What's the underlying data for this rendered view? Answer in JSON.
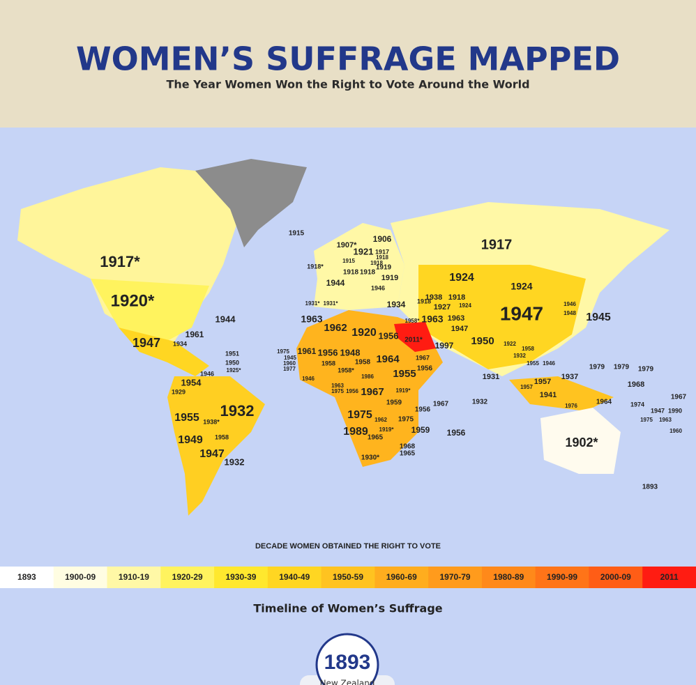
{
  "header": {
    "title": "WOMEN’S SUFFRAGE MAPPED",
    "subtitle": "The Year Women Won the Right to Vote Around the World"
  },
  "map": {
    "labels": [
      "1915",
      "1907*",
      "1906",
      "1921",
      "1917",
      "1917",
      "1917*",
      "1918",
      "1915",
      "1918",
      "1918*",
      "1918",
      "1918",
      "1919",
      "1919",
      "1944",
      "1946",
      "1924",
      "1924",
      "1920*",
      "1931*",
      "1931*",
      "1934",
      "1918",
      "1938",
      "1918",
      "1927",
      "1924",
      "1946",
      "1948",
      "1947",
      "1945",
      "1944",
      "1963",
      "1962",
      "1920",
      "1956",
      "2011*",
      "1958*",
      "1963",
      "1963",
      "1947",
      "1950",
      "1922",
      "1997",
      "1961",
      "1947",
      "1934",
      "1958",
      "1932",
      "1951",
      "1950",
      "1925*",
      "1975",
      "1945",
      "1960",
      "1977",
      "1961",
      "1956",
      "1948",
      "1958",
      "1958",
      "1964",
      "1967",
      "1958*",
      "1955",
      "1956",
      "1946",
      "1986",
      "1954",
      "1946",
      "1929",
      "1931",
      "1937",
      "1957",
      "1957",
      "1941",
      "1979",
      "1979",
      "1979",
      "1968",
      "1967",
      "1963",
      "1975",
      "1956",
      "1967",
      "1919*",
      "1959",
      "1956",
      "1967",
      "1932",
      "1964",
      "1976",
      "1974",
      "1932",
      "1955",
      "1938*",
      "1975",
      "1962",
      "1975",
      "1989",
      "1965",
      "1919*",
      "1959",
      "1956",
      "1949",
      "1958",
      "1902*",
      "1968",
      "1965",
      "1947",
      "1932",
      "1930*",
      "1893",
      "1947",
      "1990",
      "1975",
      "1963",
      "1960",
      "1955",
      "1946"
    ]
  },
  "legend": {
    "title": "DECADE WOMEN OBTAINED THE RIGHT TO VOTE",
    "items": [
      {
        "label": "1893",
        "color": "#ffffff"
      },
      {
        "label": "1900-09",
        "color": "#fffde2"
      },
      {
        "label": "1910-19",
        "color": "#fff8a6"
      },
      {
        "label": "1920-29",
        "color": "#fff35e"
      },
      {
        "label": "1930-39",
        "color": "#ffe82e"
      },
      {
        "label": "1940-49",
        "color": "#ffd622"
      },
      {
        "label": "1950-59",
        "color": "#ffc320"
      },
      {
        "label": "1960-69",
        "color": "#ffad1e"
      },
      {
        "label": "1970-79",
        "color": "#ff9b1c"
      },
      {
        "label": "1980-89",
        "color": "#ff891a"
      },
      {
        "label": "1990-99",
        "color": "#ff7418"
      },
      {
        "label": "2000-09",
        "color": "#ff5d16"
      },
      {
        "label": "2011",
        "color": "#ff1c12"
      }
    ]
  },
  "timeline": {
    "title": "Timeline of Women’s Suffrage",
    "year": "1893",
    "country": "New Zealand"
  }
}
